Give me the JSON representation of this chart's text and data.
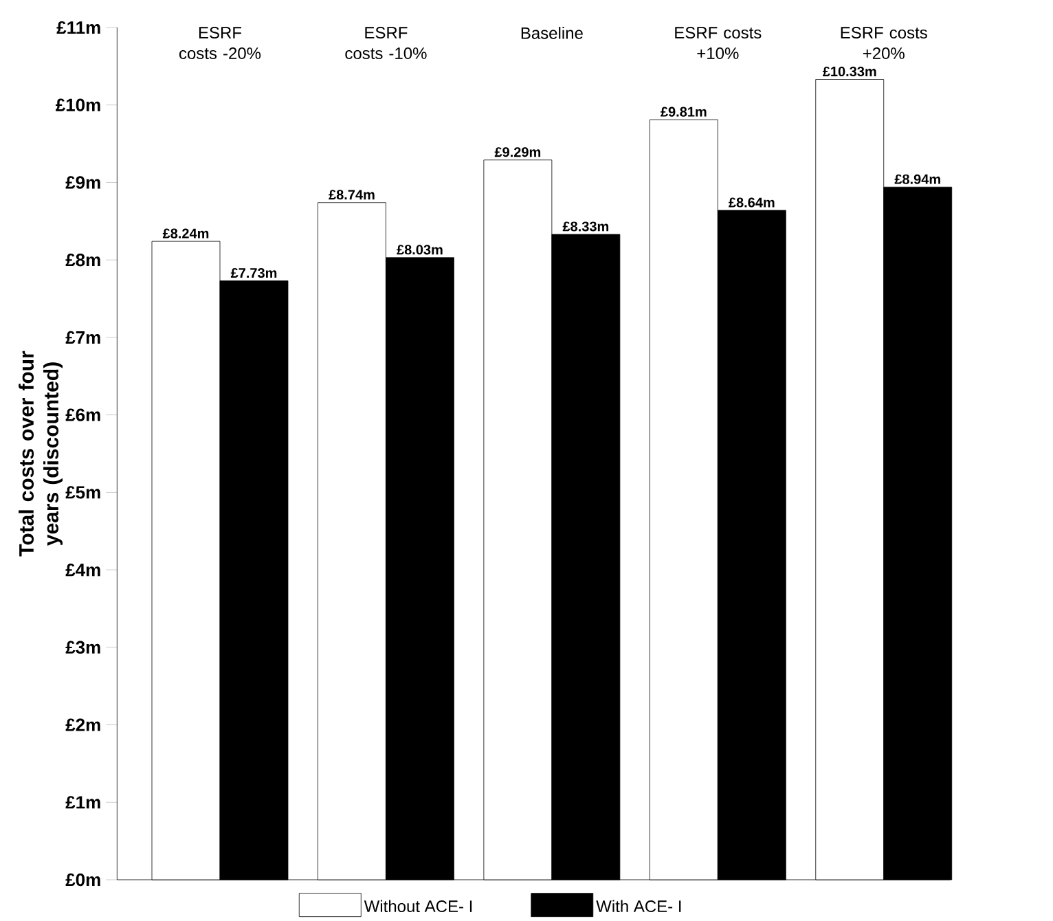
{
  "chart_data": {
    "type": "bar",
    "ylabel": "Total costs over four years (discounted)",
    "categories": [
      "ESRF costs -20%",
      "ESRF costs -10%",
      "Baseline",
      "ESRF costs +10%",
      "ESRF costs +20%"
    ],
    "series": [
      {
        "name": "Without ACE- I",
        "color": "#ffffff",
        "values": [
          8.24,
          8.74,
          9.29,
          9.81,
          10.33
        ],
        "value_labels": [
          "£8.24m",
          "£8.74m",
          "£9.29m",
          "£9.81m",
          "£10.33m"
        ]
      },
      {
        "name": "With ACE- I",
        "color": "#000000",
        "values": [
          7.73,
          8.03,
          8.33,
          8.64,
          8.94
        ],
        "value_labels": [
          "£7.73m",
          "£8.03m",
          "£8.33m",
          "£8.64m",
          "£8.94m"
        ]
      }
    ],
    "ylim": [
      0,
      11
    ],
    "yticks": [
      {
        "value": 0,
        "label": "£0m"
      },
      {
        "value": 1,
        "label": "£1m"
      },
      {
        "value": 2,
        "label": "£2m"
      },
      {
        "value": 3,
        "label": "£3m"
      },
      {
        "value": 4,
        "label": "£4m"
      },
      {
        "value": 5,
        "label": "£5m"
      },
      {
        "value": 6,
        "label": "£6m"
      },
      {
        "value": 7,
        "label": "£7m"
      },
      {
        "value": 8,
        "label": "£8m"
      },
      {
        "value": 9,
        "label": "£9m"
      },
      {
        "value": 10,
        "label": "£10m"
      },
      {
        "value": 11,
        "label": "£11m"
      }
    ],
    "legend": "bottom",
    "grid": false
  }
}
